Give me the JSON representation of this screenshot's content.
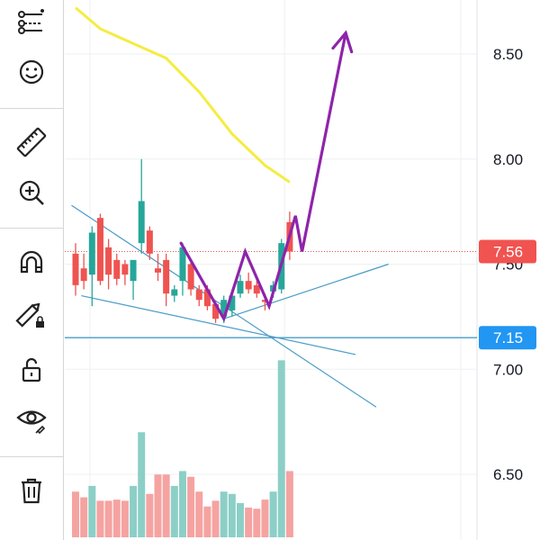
{
  "toolbar": {
    "tools": [
      {
        "name": "drawing-tools-icon",
        "label": "Drawing tools"
      },
      {
        "name": "emoji-icon",
        "label": "Emojis"
      },
      {
        "name": "ruler-icon",
        "label": "Measure"
      },
      {
        "name": "zoom-in-icon",
        "label": "Zoom in"
      },
      {
        "name": "magnet-icon",
        "label": "Magnet mode"
      },
      {
        "name": "pencil-lock-icon",
        "label": "Stay in drawing mode"
      },
      {
        "name": "lock-icon",
        "label": "Lock all drawings"
      },
      {
        "name": "eye-icon",
        "label": "Hide all drawings"
      },
      {
        "name": "trash-icon",
        "label": "Remove drawings"
      }
    ]
  },
  "colors": {
    "up": "#26a69a",
    "down": "#ef5350",
    "volume_up": "#8ccfc7",
    "volume_down": "#f5a3a1",
    "moving_average": "#f5ec42",
    "trendline": "#4a9cc7",
    "projection_arrow": "#8e24aa",
    "last_price_badge": "#f05350",
    "horizontal_level_badge": "#2196f3"
  },
  "price_axis": {
    "ticks": [
      "8.50",
      "8.00",
      "7.50",
      "7.00",
      "6.50"
    ],
    "tick_values": [
      8.5,
      8.0,
      7.5,
      7.0,
      6.5
    ]
  },
  "badges": {
    "last_price": {
      "text": "7.56",
      "value": 7.56
    },
    "horizontal_level": {
      "text": "7.15",
      "value": 7.15
    }
  },
  "chart_data": {
    "type": "candlestick",
    "ylim": [
      6.3,
      8.75
    ],
    "candles": [
      {
        "o": 7.55,
        "h": 7.6,
        "l": 7.35,
        "c": 7.4
      },
      {
        "o": 7.48,
        "h": 7.55,
        "l": 7.38,
        "c": 7.42
      },
      {
        "o": 7.45,
        "h": 7.68,
        "l": 7.3,
        "c": 7.65
      },
      {
        "o": 7.72,
        "h": 7.74,
        "l": 7.4,
        "c": 7.42
      },
      {
        "o": 7.58,
        "h": 7.62,
        "l": 7.38,
        "c": 7.45
      },
      {
        "o": 7.52,
        "h": 7.55,
        "l": 7.4,
        "c": 7.43
      },
      {
        "o": 7.5,
        "h": 7.52,
        "l": 7.4,
        "c": 7.45
      },
      {
        "o": 7.42,
        "h": 7.5,
        "l": 7.33,
        "c": 7.52
      },
      {
        "o": 7.6,
        "h": 8.0,
        "l": 7.55,
        "c": 7.8
      },
      {
        "o": 7.66,
        "h": 7.68,
        "l": 7.52,
        "c": 7.55
      },
      {
        "o": 7.48,
        "h": 7.55,
        "l": 7.42,
        "c": 7.46
      },
      {
        "o": 7.52,
        "h": 7.55,
        "l": 7.3,
        "c": 7.36
      },
      {
        "o": 7.35,
        "h": 7.4,
        "l": 7.32,
        "c": 7.38
      },
      {
        "o": 7.42,
        "h": 7.6,
        "l": 7.35,
        "c": 7.58
      },
      {
        "o": 7.5,
        "h": 7.52,
        "l": 7.35,
        "c": 7.38
      },
      {
        "o": 7.38,
        "h": 7.4,
        "l": 7.3,
        "c": 7.33
      },
      {
        "o": 7.38,
        "h": 7.4,
        "l": 7.28,
        "c": 7.3
      },
      {
        "o": 7.31,
        "h": 7.32,
        "l": 7.22,
        "c": 7.24
      },
      {
        "o": 7.25,
        "h": 7.35,
        "l": 7.22,
        "c": 7.33
      },
      {
        "o": 7.28,
        "h": 7.36,
        "l": 7.25,
        "c": 7.35
      },
      {
        "o": 7.36,
        "h": 7.45,
        "l": 7.34,
        "c": 7.42
      },
      {
        "o": 7.42,
        "h": 7.46,
        "l": 7.36,
        "c": 7.38
      },
      {
        "o": 7.4,
        "h": 7.42,
        "l": 7.34,
        "c": 7.36
      },
      {
        "o": 7.33,
        "h": 7.36,
        "l": 7.28,
        "c": 7.32
      },
      {
        "o": 7.37,
        "h": 7.42,
        "l": 7.34,
        "c": 7.4
      },
      {
        "o": 7.38,
        "h": 7.62,
        "l": 7.36,
        "c": 7.6
      },
      {
        "o": 7.7,
        "h": 7.75,
        "l": 7.52,
        "c": 7.56
      }
    ],
    "volume": [
      0.4,
      0.35,
      0.45,
      0.32,
      0.32,
      0.33,
      0.32,
      0.45,
      0.92,
      0.38,
      0.55,
      0.55,
      0.45,
      0.58,
      0.53,
      0.4,
      0.27,
      0.32,
      0.4,
      0.38,
      0.3,
      0.26,
      0.25,
      0.33,
      0.4,
      1.55,
      0.58
    ],
    "volume_max": 1.6,
    "moving_average": [
      {
        "i": 0,
        "v": 8.72
      },
      {
        "i": 3,
        "v": 8.62
      },
      {
        "i": 7,
        "v": 8.55
      },
      {
        "i": 11,
        "v": 8.48
      },
      {
        "i": 15,
        "v": 8.32
      },
      {
        "i": 19,
        "v": 8.12
      },
      {
        "i": 23,
        "v": 7.97
      },
      {
        "i": 26,
        "v": 7.89
      }
    ],
    "projection": [
      {
        "i": 12.8,
        "v": 7.6
      },
      {
        "i": 18.0,
        "v": 7.24
      },
      {
        "i": 20.6,
        "v": 7.56
      },
      {
        "i": 23.5,
        "v": 7.3
      },
      {
        "i": 26.7,
        "v": 7.73
      },
      {
        "i": 27.5,
        "v": 7.56
      },
      {
        "i": 32.8,
        "v": 8.6
      }
    ],
    "trendlines": [
      {
        "a": {
          "i": -0.5,
          "v": 7.78
        },
        "b": {
          "i": 36.5,
          "v": 6.82
        }
      },
      {
        "a": {
          "i": 0.7,
          "v": 7.35
        },
        "b": {
          "i": 34.0,
          "v": 7.07
        }
      },
      {
        "a": {
          "i": 18.0,
          "v": 7.24
        },
        "b": {
          "i": 38.0,
          "v": 7.5
        }
      }
    ],
    "horizontal_level": 7.15
  }
}
